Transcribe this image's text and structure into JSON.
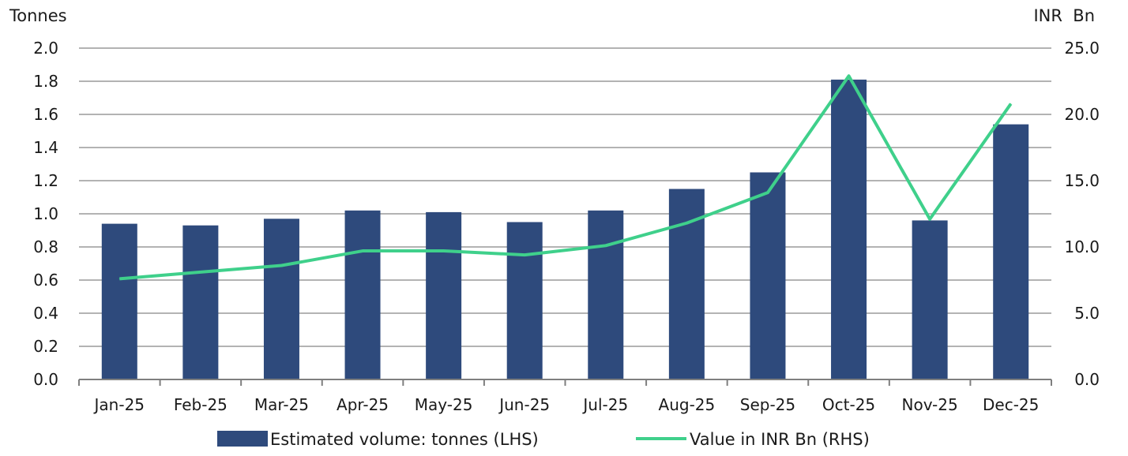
{
  "chart_data": {
    "type": "bar",
    "categories": [
      "Jan-25",
      "Feb-25",
      "Mar-25",
      "Apr-25",
      "May-25",
      "Jun-25",
      "Jul-25",
      "Aug-25",
      "Sep-25",
      "Oct-25",
      "Nov-25",
      "Dec-25"
    ],
    "series": [
      {
        "name": "Estimated volume: tonnes (LHS)",
        "kind": "bar",
        "axis": "left",
        "color": "#2e4a7c",
        "values": [
          0.94,
          0.93,
          0.97,
          1.02,
          1.01,
          0.95,
          1.02,
          1.15,
          1.25,
          1.81,
          0.96,
          1.54
        ]
      },
      {
        "name": "Value in INR Bn (RHS)",
        "kind": "line",
        "axis": "right",
        "color": "#3fd08b",
        "values": [
          7.6,
          8.1,
          8.6,
          9.7,
          9.7,
          9.4,
          10.1,
          11.8,
          14.1,
          22.9,
          12.1,
          20.8
        ]
      }
    ],
    "left_axis": {
      "label": "Tonnes",
      "range": [
        0,
        2.0
      ],
      "ticks": [
        "0.0",
        "0.2",
        "0.4",
        "0.6",
        "0.8",
        "1.0",
        "1.2",
        "1.4",
        "1.6",
        "1.8",
        "2.0"
      ]
    },
    "right_axis": {
      "label": "INR  Bn",
      "range": [
        0,
        25.0
      ],
      "ticks": [
        "0.0",
        "5.0",
        "10.0",
        "15.0",
        "20.0",
        "25.0"
      ]
    },
    "grid": true,
    "legend_position": "bottom",
    "gridline_color": "#b3b3b3",
    "axis_color": "#7f7f7f"
  }
}
